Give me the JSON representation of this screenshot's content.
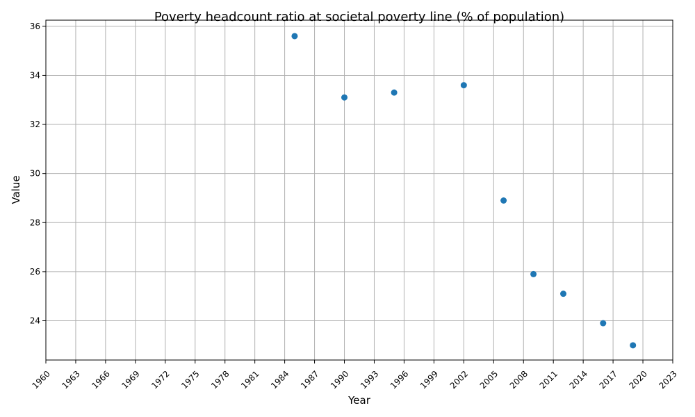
{
  "chart_data": {
    "type": "scatter",
    "title": "Poverty headcount ratio at societal poverty line (% of population)",
    "xlabel": "Year",
    "ylabel": "Value",
    "xlim": [
      1960,
      2023
    ],
    "ylim": [
      22.4,
      36.25
    ],
    "xticks": [
      1960,
      1963,
      1966,
      1969,
      1972,
      1975,
      1978,
      1981,
      1984,
      1987,
      1990,
      1993,
      1996,
      1999,
      2002,
      2005,
      2008,
      2011,
      2014,
      2017,
      2020,
      2023
    ],
    "yticks": [
      24,
      26,
      28,
      30,
      32,
      34,
      36
    ],
    "grid": true,
    "marker_color": "#1f77b4",
    "x": [
      1985,
      1990,
      1995,
      2002,
      2006,
      2009,
      2012,
      2016,
      2019
    ],
    "y": [
      35.6,
      33.1,
      33.3,
      33.6,
      28.9,
      25.9,
      25.1,
      23.9,
      23.0
    ]
  }
}
